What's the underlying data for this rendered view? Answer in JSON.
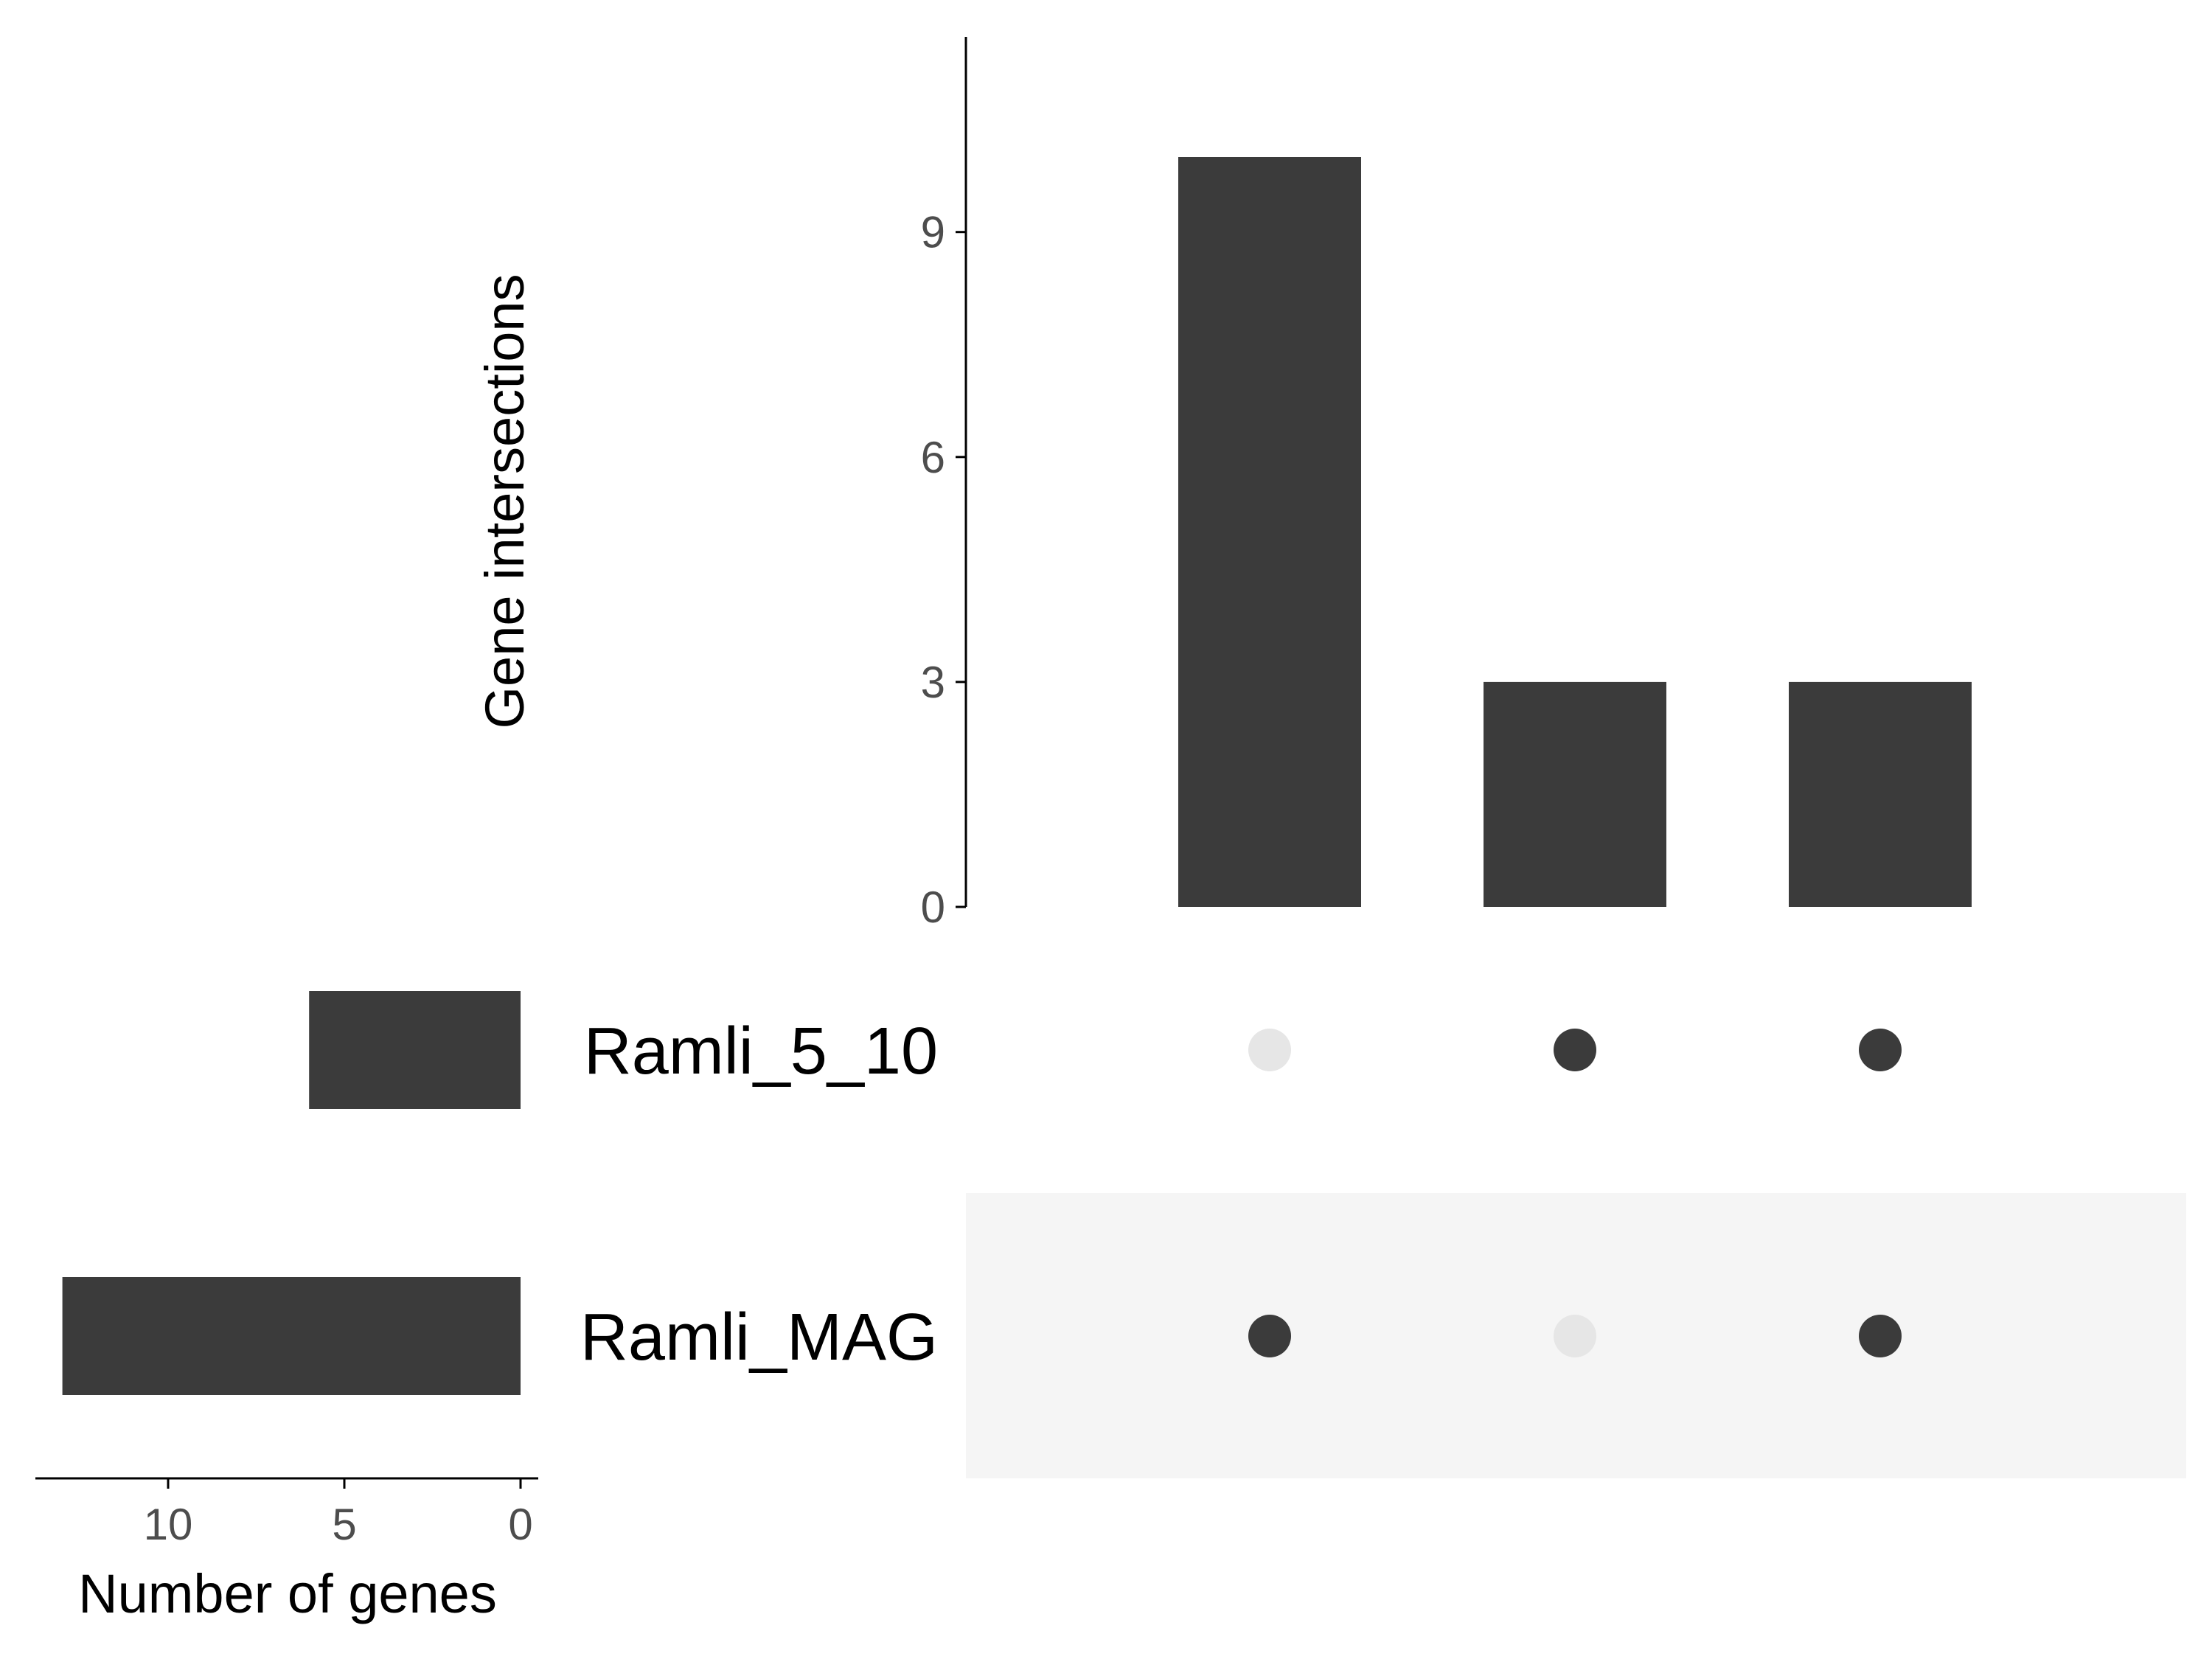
{
  "chart_data": {
    "type": "bar",
    "subtype": "upset",
    "intersections": {
      "ylabel": "Gene intersections",
      "yticks": [
        "0",
        "3",
        "6",
        "9"
      ],
      "ylim": [
        0,
        11.5
      ],
      "bars": [
        {
          "value": 10,
          "sets": [
            "Ramli_MAG"
          ]
        },
        {
          "value": 3,
          "sets": [
            "Ramli_5_10"
          ]
        },
        {
          "value": 3,
          "sets": [
            "Ramli_5_10",
            "Ramli_MAG"
          ]
        }
      ]
    },
    "sets": {
      "xlabel": "Number of genes",
      "xticks": [
        "10",
        "5",
        "0"
      ],
      "xlim": [
        0,
        14
      ],
      "names": [
        "Ramli_5_10",
        "Ramli_MAG"
      ],
      "values": [
        6,
        13
      ]
    },
    "colors": {
      "bar": "#3b3b3b",
      "dot_active": "#3b3b3b",
      "dot_inactive": "#e6e6e6",
      "stripe": "#f5f5f5",
      "axis": "#000000"
    },
    "grid": false
  }
}
